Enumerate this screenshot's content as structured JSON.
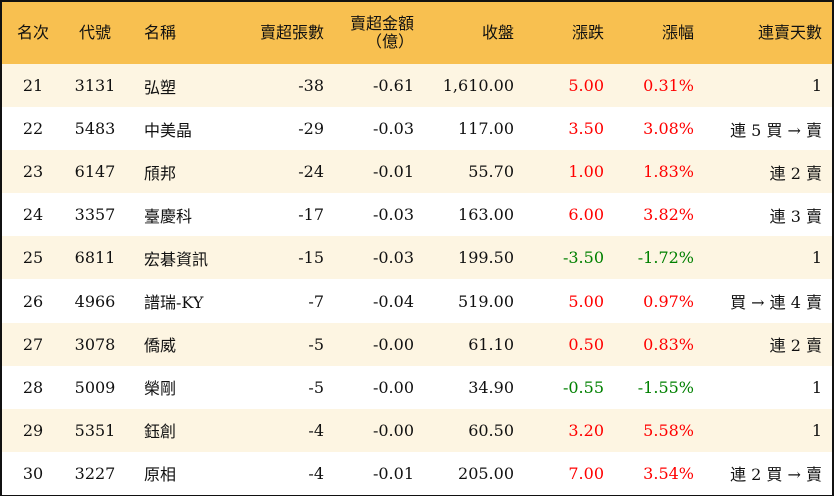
{
  "headers": {
    "rank": "名次",
    "code": "代號",
    "name": "名稱",
    "net_sell_lots": "賣超張數",
    "net_sell_amount_line1": "賣超金額",
    "net_sell_amount_line2": "（億）",
    "close": "收盤",
    "change": "漲跌",
    "change_pct": "漲幅",
    "consecutive_days": "連賣天數"
  },
  "colors": {
    "header_bg": "#F8C050",
    "row_alt_bg": "#FDF5E2",
    "up": "#FF0000",
    "down": "#008000"
  },
  "rows": [
    {
      "rank": "21",
      "code": "3131",
      "name": "弘塑",
      "lots": "-38",
      "amount": "-0.61",
      "close": "1,610.00",
      "change": "5.00",
      "pct": "0.31%",
      "days": "1",
      "dir": "up"
    },
    {
      "rank": "22",
      "code": "5483",
      "name": "中美晶",
      "lots": "-29",
      "amount": "-0.03",
      "close": "117.00",
      "change": "3.50",
      "pct": "3.08%",
      "days": "連 5 買 → 賣",
      "dir": "up"
    },
    {
      "rank": "23",
      "code": "6147",
      "name": "頎邦",
      "lots": "-24",
      "amount": "-0.01",
      "close": "55.70",
      "change": "1.00",
      "pct": "1.83%",
      "days": "連 2 賣",
      "dir": "up"
    },
    {
      "rank": "24",
      "code": "3357",
      "name": "臺慶科",
      "lots": "-17",
      "amount": "-0.03",
      "close": "163.00",
      "change": "6.00",
      "pct": "3.82%",
      "days": "連 3 賣",
      "dir": "up"
    },
    {
      "rank": "25",
      "code": "6811",
      "name": "宏碁資訊",
      "lots": "-15",
      "amount": "-0.03",
      "close": "199.50",
      "change": "-3.50",
      "pct": "-1.72%",
      "days": "1",
      "dir": "down"
    },
    {
      "rank": "26",
      "code": "4966",
      "name": "譜瑞-KY",
      "lots": "-7",
      "amount": "-0.04",
      "close": "519.00",
      "change": "5.00",
      "pct": "0.97%",
      "days": "買 → 連 4 賣",
      "dir": "up"
    },
    {
      "rank": "27",
      "code": "3078",
      "name": "僑威",
      "lots": "-5",
      "amount": "-0.00",
      "close": "61.10",
      "change": "0.50",
      "pct": "0.83%",
      "days": "連 2 賣",
      "dir": "up"
    },
    {
      "rank": "28",
      "code": "5009",
      "name": "榮剛",
      "lots": "-5",
      "amount": "-0.00",
      "close": "34.90",
      "change": "-0.55",
      "pct": "-1.55%",
      "days": "1",
      "dir": "down"
    },
    {
      "rank": "29",
      "code": "5351",
      "name": "鈺創",
      "lots": "-4",
      "amount": "-0.00",
      "close": "60.50",
      "change": "3.20",
      "pct": "5.58%",
      "days": "1",
      "dir": "up"
    },
    {
      "rank": "30",
      "code": "3227",
      "name": "原相",
      "lots": "-4",
      "amount": "-0.01",
      "close": "205.00",
      "change": "7.00",
      "pct": "3.54%",
      "days": "連 2 買 → 賣",
      "dir": "up"
    }
  ]
}
